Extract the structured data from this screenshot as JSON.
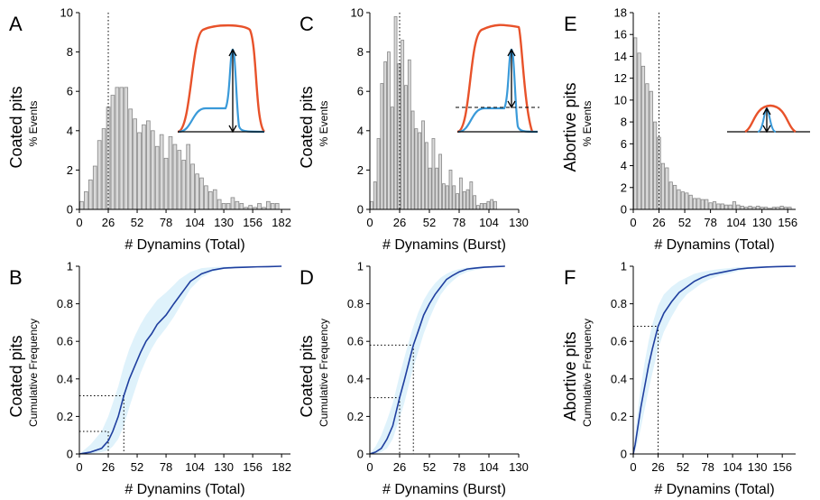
{
  "colors": {
    "bar_fill": "#d9d9d9",
    "bar_stroke": "#888888",
    "cdf_line": "#1f3f9f",
    "cdf_band": "#dff2fb",
    "inset_red": "#e8522a",
    "inset_blue": "#3a9ad9"
  },
  "chart_data": [
    {
      "panel": "A",
      "type": "bar",
      "ylabel_main": "Coated pits",
      "ylabel_sub": "% Events",
      "xlabel": "# Dynamins (Total)",
      "xlim": [
        0,
        190
      ],
      "ylim": [
        0,
        10
      ],
      "xticks": [
        "0",
        "26",
        "52",
        "78",
        "104",
        "130",
        "156",
        "182"
      ],
      "yticks": [
        "0",
        "2",
        "4",
        "6",
        "8",
        "10"
      ],
      "bin_width": 4,
      "bin_start": 2,
      "values": [
        0.4,
        0.9,
        1.5,
        2.2,
        3.5,
        4.1,
        5.2,
        5.8,
        6.2,
        6.2,
        6.2,
        5.1,
        4.6,
        3.9,
        4.3,
        4.5,
        4.0,
        3.2,
        3.8,
        2.6,
        3.7,
        3.3,
        3.0,
        2.5,
        3.3,
        2.3,
        1.8,
        1.6,
        1.2,
        0.9,
        1.0,
        0.5,
        0.3,
        0.3,
        0.6,
        0.4,
        0.3,
        0.1,
        0.2,
        0.1,
        0.3,
        0.1,
        0.4,
        0.3,
        0.3
      ],
      "guide_x": 26
    },
    {
      "panel": "C",
      "type": "bar",
      "ylabel_main": "Coated pits",
      "ylabel_sub": "% Events",
      "xlabel": "# Dynamins (Burst)",
      "xlim": [
        0,
        130
      ],
      "ylim": [
        0,
        10
      ],
      "xticks": [
        "0",
        "26",
        "52",
        "78",
        "104",
        "130"
      ],
      "yticks": [
        "0",
        "2",
        "4",
        "6",
        "8",
        "10"
      ],
      "bin_width": 3,
      "bin_start": 1.5,
      "values": [
        0.4,
        1.4,
        3.6,
        6.4,
        7.5,
        8.0,
        5.2,
        9.8,
        7.4,
        8.6,
        6.3,
        7.6,
        5.0,
        4.1,
        3.9,
        4.5,
        3.4,
        2.1,
        3.6,
        2.1,
        2.8,
        1.3,
        1.2,
        2.0,
        1.2,
        0.8,
        1.6,
        0.9,
        1.0,
        1.4,
        0.7,
        0.2,
        0.3,
        0.3,
        0.4,
        0.5,
        0.4
      ],
      "guide_x": 26
    },
    {
      "panel": "E",
      "type": "bar",
      "ylabel_main": "Abortive pits",
      "ylabel_sub": "% Events",
      "xlabel": "# Dynamins (Total)",
      "xlim": [
        0,
        164
      ],
      "ylim": [
        0,
        18
      ],
      "xticks": [
        "0",
        "26",
        "52",
        "78",
        "104",
        "130",
        "156"
      ],
      "yticks": [
        "0",
        "2",
        "4",
        "6",
        "8",
        "10",
        "12",
        "14",
        "16",
        "18"
      ],
      "bin_width": 4,
      "bin_start": 2,
      "values": [
        15.7,
        14.3,
        13.1,
        11.5,
        10.8,
        8.0,
        6.6,
        4.2,
        3.8,
        2.5,
        2.2,
        1.8,
        1.6,
        1.5,
        1.3,
        1.0,
        1.0,
        0.9,
        0.9,
        0.6,
        0.7,
        0.5,
        0.5,
        0.4,
        0.4,
        0.7,
        0.4,
        0.3,
        0.2,
        0.3,
        0.2,
        0.3,
        0.2,
        0.2,
        0.1,
        0.2,
        0.2,
        0.3,
        0.2,
        0.2
      ],
      "guide_x": 26
    },
    {
      "panel": "B",
      "type": "line",
      "ylabel_main": "Coated pits",
      "ylabel_sub": "Cumulative Frequency",
      "xlabel": "# Dynamins (Total)",
      "xlim": [
        0,
        190
      ],
      "ylim": [
        0,
        1
      ],
      "xticks": [
        "0",
        "26",
        "52",
        "78",
        "104",
        "130",
        "156",
        "182"
      ],
      "yticks": [
        "0",
        "0.2",
        "0.4",
        "0.6",
        "0.8",
        "1"
      ],
      "x": [
        0,
        10,
        20,
        26,
        30,
        35,
        40,
        45,
        50,
        55,
        60,
        65,
        70,
        78,
        85,
        90,
        95,
        100,
        105,
        110,
        120,
        130,
        140,
        150,
        160,
        170,
        182
      ],
      "y": [
        0,
        0.01,
        0.03,
        0.07,
        0.12,
        0.2,
        0.31,
        0.4,
        0.47,
        0.54,
        0.6,
        0.64,
        0.69,
        0.74,
        0.8,
        0.84,
        0.88,
        0.92,
        0.94,
        0.96,
        0.98,
        0.99,
        0.993,
        0.995,
        0.997,
        0.998,
        1
      ],
      "band_lower": [
        0,
        0,
        0.01,
        0.02,
        0.04,
        0.08,
        0.15,
        0.25,
        0.34,
        0.43,
        0.5,
        0.56,
        0.61,
        0.67,
        0.73,
        0.78,
        0.83,
        0.88,
        0.91,
        0.94,
        0.97,
        0.985,
        0.99,
        0.993,
        0.995,
        0.997,
        1
      ],
      "band_upper": [
        0,
        0.05,
        0.12,
        0.2,
        0.27,
        0.36,
        0.47,
        0.56,
        0.63,
        0.69,
        0.74,
        0.78,
        0.82,
        0.86,
        0.9,
        0.93,
        0.95,
        0.97,
        0.98,
        0.99,
        0.995,
        0.998,
        1,
        1,
        1,
        1,
        1
      ],
      "guides": [
        {
          "x": 26,
          "y": 0.12
        },
        {
          "x": 40,
          "y": 0.31
        }
      ]
    },
    {
      "panel": "D",
      "type": "line",
      "ylabel_main": "Coated pits",
      "ylabel_sub": "Cumulative Frequency",
      "xlabel": "# Dynamins (Burst)",
      "xlim": [
        0,
        130
      ],
      "ylim": [
        0,
        1
      ],
      "xticks": [
        "0",
        "26",
        "52",
        "78",
        "104",
        "130"
      ],
      "yticks": [
        "0",
        "0.2",
        "0.4",
        "0.6",
        "0.8",
        "1"
      ],
      "x": [
        0,
        5,
        10,
        15,
        20,
        26,
        30,
        35,
        38,
        42,
        47,
        52,
        57,
        62,
        67,
        72,
        78,
        85,
        92,
        100,
        110,
        118
      ],
      "y": [
        0,
        0.01,
        0.03,
        0.08,
        0.15,
        0.3,
        0.39,
        0.51,
        0.58,
        0.65,
        0.74,
        0.8,
        0.85,
        0.89,
        0.93,
        0.95,
        0.97,
        0.985,
        0.99,
        0.995,
        0.998,
        1
      ],
      "band_lower": [
        0,
        0,
        0.01,
        0.03,
        0.08,
        0.19,
        0.27,
        0.39,
        0.46,
        0.54,
        0.64,
        0.72,
        0.79,
        0.85,
        0.89,
        0.92,
        0.95,
        0.97,
        0.98,
        0.99,
        0.995,
        1
      ],
      "band_upper": [
        0,
        0.04,
        0.1,
        0.18,
        0.27,
        0.42,
        0.51,
        0.62,
        0.68,
        0.75,
        0.82,
        0.87,
        0.91,
        0.94,
        0.96,
        0.975,
        0.985,
        0.993,
        0.997,
        1,
        1,
        1
      ],
      "guides": [
        {
          "x": 26,
          "y": 0.3
        },
        {
          "x": 38,
          "y": 0.58
        }
      ]
    },
    {
      "panel": "F",
      "type": "line",
      "ylabel_main": "Abortive pits",
      "ylabel_sub": "Cumulative Frequency",
      "xlabel": "# Dynamins (Total)",
      "xlim": [
        0,
        170
      ],
      "ylim": [
        0,
        1
      ],
      "xticks": [
        "0",
        "26",
        "52",
        "78",
        "104",
        "130",
        "156"
      ],
      "yticks": [
        "0",
        "0.2",
        "0.4",
        "0.6",
        "0.8",
        "1"
      ],
      "x": [
        0,
        2,
        5,
        8,
        12,
        16,
        20,
        26,
        32,
        40,
        48,
        56,
        64,
        72,
        80,
        90,
        100,
        110,
        120,
        130,
        140,
        150,
        160,
        170
      ],
      "y": [
        0,
        0.05,
        0.15,
        0.25,
        0.36,
        0.47,
        0.56,
        0.68,
        0.75,
        0.81,
        0.86,
        0.89,
        0.92,
        0.94,
        0.955,
        0.965,
        0.975,
        0.985,
        0.99,
        0.993,
        0.996,
        0.998,
        0.999,
        1
      ],
      "band_lower": [
        0,
        0.02,
        0.07,
        0.14,
        0.24,
        0.34,
        0.43,
        0.56,
        0.65,
        0.73,
        0.8,
        0.85,
        0.88,
        0.91,
        0.93,
        0.95,
        0.96,
        0.975,
        0.985,
        0.99,
        0.994,
        0.997,
        0.998,
        1
      ],
      "band_upper": [
        0,
        0.1,
        0.24,
        0.36,
        0.49,
        0.6,
        0.69,
        0.79,
        0.85,
        0.89,
        0.92,
        0.94,
        0.96,
        0.97,
        0.978,
        0.985,
        0.99,
        0.995,
        0.998,
        1,
        1,
        1,
        1,
        1
      ],
      "guides": [
        {
          "x": 26,
          "y": 0.68
        }
      ]
    }
  ]
}
